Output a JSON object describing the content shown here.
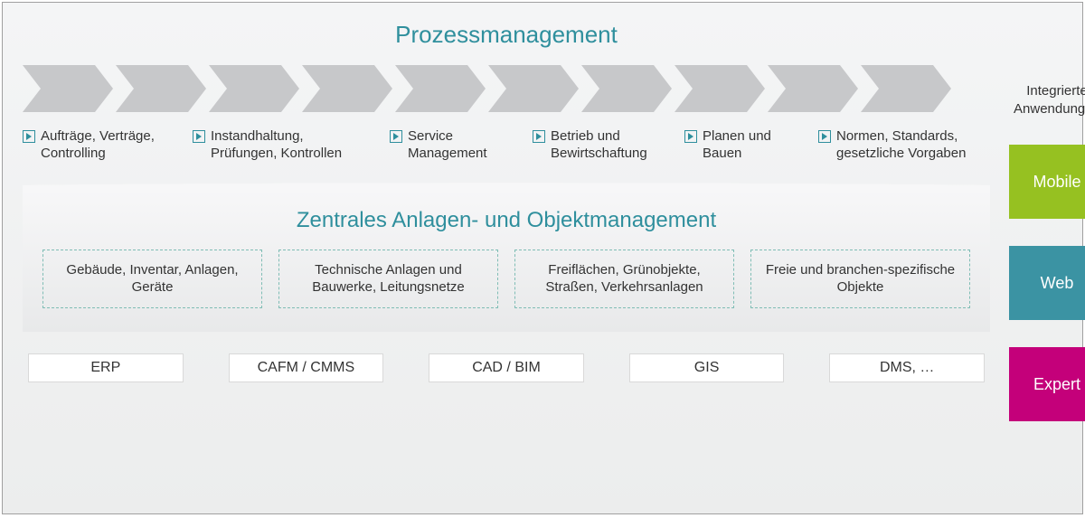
{
  "title": "Prozessmanagement",
  "chevrons": {
    "count": 10,
    "fill": "#c7c8ca",
    "width": 100,
    "height": 52,
    "notch": 20,
    "gap": 3
  },
  "processes": [
    "Aufträge, Verträge, Controlling",
    "Instandhaltung, Prüfungen, Kontrollen",
    "Service Management",
    "Betrieb und Bewirtschaftung",
    "Planen und Bauen",
    "Normen, Standards, gesetzliche Vorgaben"
  ],
  "subtitle": "Zentrales Anlagen- und Objektmanagement",
  "categories": [
    "Gebäude, Inventar, Anlagen, Geräte",
    "Technische Anlagen und Bauwerke, Leitungsnetze",
    "Freiflächen, Grünobjekte, Straßen, Verkehrsanlagen",
    "Freie  und  branchen-spezifische Objekte"
  ],
  "systems": [
    "ERP",
    "CAFM / CMMS",
    "CAD / BIM",
    "GIS",
    "DMS, …"
  ],
  "side_title": "Integrierte Anwendungen",
  "apps": [
    {
      "label": "Mobile",
      "color": "#96c121"
    },
    {
      "label": "Web",
      "color": "#3b93a3"
    },
    {
      "label": "Expert",
      "color": "#c4007a"
    }
  ],
  "colors": {
    "heading": "#2f8f9d",
    "text": "#333333",
    "dash_border": "#7fbdb5",
    "frame_border": "#a0a0a0"
  }
}
